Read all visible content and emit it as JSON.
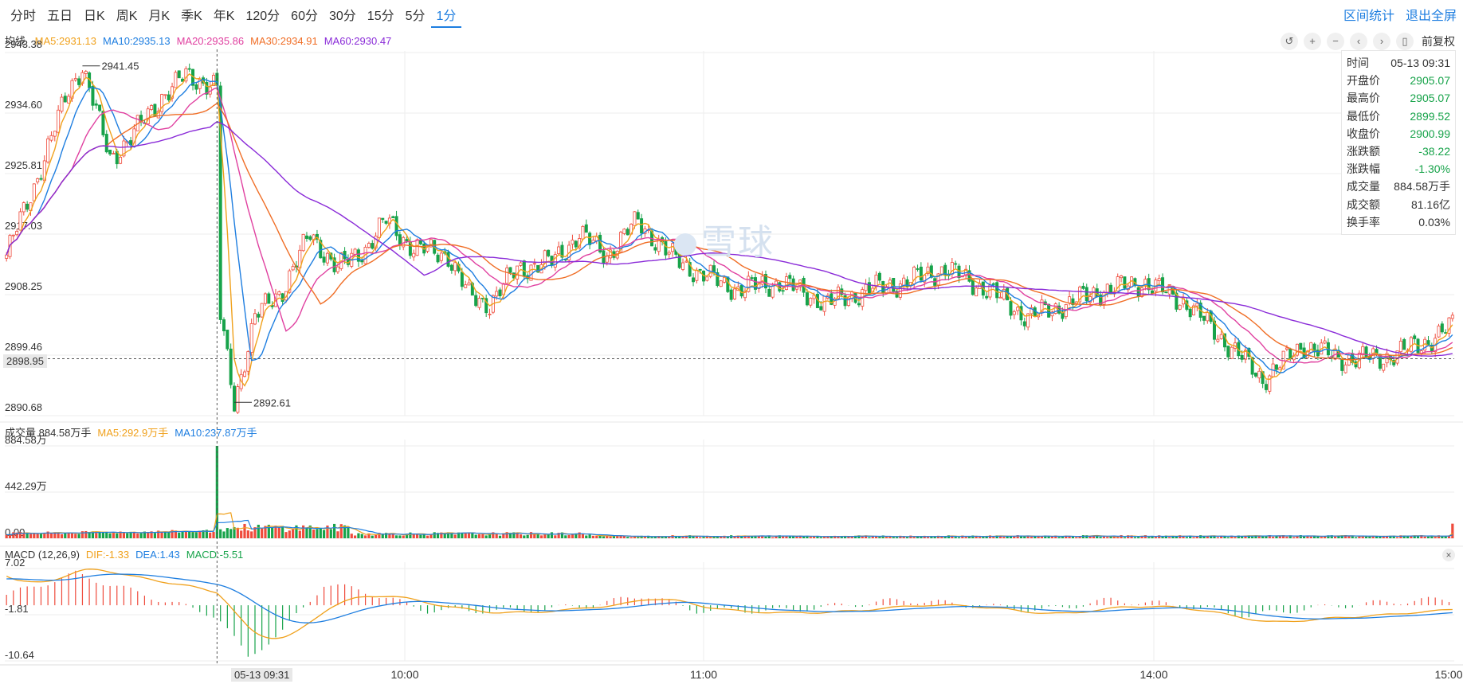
{
  "toolbar": {
    "tabs": [
      "分时",
      "五日",
      "日K",
      "周K",
      "月K",
      "季K",
      "年K",
      "120分",
      "60分",
      "30分",
      "15分",
      "5分",
      "1分"
    ],
    "active_tab": "1分",
    "right_links": [
      "区间统计",
      "退出全屏"
    ]
  },
  "ma_legend": {
    "label": "均线",
    "items": [
      {
        "text": "MA5:2931.13",
        "color": "#f0a11c"
      },
      {
        "text": "MA10:2935.13",
        "color": "#1e7ee0"
      },
      {
        "text": "MA20:2935.86",
        "color": "#e040a0"
      },
      {
        "text": "MA30:2934.91",
        "color": "#f06e26"
      },
      {
        "text": "MA60:2930.47",
        "color": "#8a2bd8"
      }
    ]
  },
  "controls": {
    "icons": [
      "reset-icon",
      "zoom-in-icon",
      "zoom-out-icon",
      "scroll-left-icon",
      "scroll-right-icon",
      "range-icon"
    ],
    "glyphs": [
      "↺",
      "+",
      "−",
      "‹",
      "›",
      "▯"
    ],
    "fq_label": "前复权"
  },
  "info_box": {
    "rows": [
      {
        "k": "时间",
        "v": "05-13 09:31",
        "c": "normal"
      },
      {
        "k": "开盘价",
        "v": "2905.07",
        "c": "down"
      },
      {
        "k": "最高价",
        "v": "2905.07",
        "c": "down"
      },
      {
        "k": "最低价",
        "v": "2899.52",
        "c": "down"
      },
      {
        "k": "收盘价",
        "v": "2900.99",
        "c": "down"
      },
      {
        "k": "涨跌额",
        "v": "-38.22",
        "c": "down"
      },
      {
        "k": "涨跌幅",
        "v": "-1.30%",
        "c": "down"
      },
      {
        "k": "成交量",
        "v": "884.58万手",
        "c": "normal"
      },
      {
        "k": "成交额",
        "v": "81.16亿",
        "c": "normal"
      },
      {
        "k": "换手率",
        "v": "0.03%",
        "c": "normal"
      }
    ]
  },
  "vol_legend": {
    "items": [
      {
        "text": "成交量 884.58万手",
        "color": "#333333"
      },
      {
        "text": "MA5:292.9万手",
        "color": "#f0a11c"
      },
      {
        "text": "MA10:237.87万手",
        "color": "#1e7ee0"
      }
    ]
  },
  "macd_legend": {
    "items": [
      {
        "text": "MACD (12,26,9)",
        "color": "#333333"
      },
      {
        "text": "DIF:-1.33",
        "color": "#f0a11c"
      },
      {
        "text": "DEA:1.43",
        "color": "#1e7ee0"
      },
      {
        "text": "MACD:-5.51",
        "color": "#17a34a"
      }
    ]
  },
  "crosshair": {
    "price_label": "2898.95",
    "time_label": "05-13 09:31"
  },
  "watermark": "雪球",
  "colors": {
    "up": "#ef4b3c",
    "down": "#17a34a",
    "ma5": "#f0a11c",
    "ma10": "#1e7ee0",
    "ma20": "#e040a0",
    "ma30": "#f06e26",
    "ma60": "#8a2bd8"
  },
  "chart_data": {
    "type": "candlestick",
    "x_labels": [
      "05-13 09:31",
      "10:00",
      "11:00",
      "14:00",
      "15:00"
    ],
    "price_axis": {
      "ticks": [
        "2943.38",
        "2934.60",
        "2925.81",
        "2917.03",
        "2908.25",
        "2899.46",
        "2890.68"
      ],
      "ylim": [
        2890.68,
        2943.38
      ]
    },
    "annotations": [
      {
        "text": "2941.45",
        "value": 2941.45
      },
      {
        "text": "2892.61",
        "value": 2892.61
      }
    ],
    "volume_axis": {
      "ticks": [
        "884.58万",
        "442.29万",
        "0.00"
      ],
      "ylim": [
        0,
        884.58
      ]
    },
    "macd_axis": {
      "ticks": [
        "7.02",
        "-1.81",
        "-10.64"
      ],
      "ylim": [
        -10.64,
        7.02
      ]
    },
    "price_path": [
      [
        0,
        2914
      ],
      [
        8,
        2924
      ],
      [
        18,
        2938
      ],
      [
        22,
        2941.45
      ],
      [
        30,
        2928
      ],
      [
        36,
        2931
      ],
      [
        45,
        2937
      ],
      [
        52,
        2940
      ],
      [
        60,
        2938.6
      ],
      [
        61,
        2938
      ],
      [
        62,
        2905
      ],
      [
        66,
        2892.61
      ],
      [
        72,
        2905
      ],
      [
        80,
        2909
      ],
      [
        88,
        2917
      ],
      [
        96,
        2912
      ],
      [
        104,
        2915
      ],
      [
        110,
        2919
      ],
      [
        118,
        2915
      ],
      [
        128,
        2914
      ],
      [
        134,
        2908
      ],
      [
        140,
        2907
      ],
      [
        148,
        2912
      ],
      [
        158,
        2913
      ],
      [
        166,
        2917
      ],
      [
        174,
        2914
      ],
      [
        183,
        2919
      ],
      [
        192,
        2914
      ],
      [
        202,
        2911
      ],
      [
        212,
        2909
      ],
      [
        224,
        2910
      ],
      [
        238,
        2907
      ],
      [
        250,
        2909
      ],
      [
        260,
        2910
      ],
      [
        272,
        2912
      ],
      [
        284,
        2909
      ],
      [
        296,
        2905
      ],
      [
        308,
        2907
      ],
      [
        318,
        2909
      ],
      [
        330,
        2910
      ],
      [
        342,
        2907
      ],
      [
        354,
        2901
      ],
      [
        364,
        2896
      ],
      [
        376,
        2901
      ],
      [
        386,
        2899
      ],
      [
        398,
        2899
      ],
      [
        410,
        2901
      ],
      [
        420,
        2904
      ]
    ],
    "volume_bars_count": 420,
    "macd_segments": [
      [
        0,
        2
      ],
      [
        20,
        6
      ],
      [
        45,
        1
      ],
      [
        61,
        -2
      ],
      [
        70,
        -10
      ],
      [
        80,
        -5
      ],
      [
        92,
        4
      ],
      [
        102,
        3
      ],
      [
        112,
        1
      ],
      [
        122,
        -1
      ],
      [
        150,
        -1
      ],
      [
        170,
        0
      ],
      [
        185,
        2
      ],
      [
        200,
        -1
      ],
      [
        225,
        -1
      ],
      [
        260,
        1
      ],
      [
        280,
        0
      ],
      [
        300,
        -1
      ],
      [
        320,
        1
      ],
      [
        340,
        0
      ],
      [
        360,
        -2
      ],
      [
        372,
        -1
      ],
      [
        388,
        0
      ],
      [
        410,
        1
      ],
      [
        420,
        1
      ]
    ]
  }
}
